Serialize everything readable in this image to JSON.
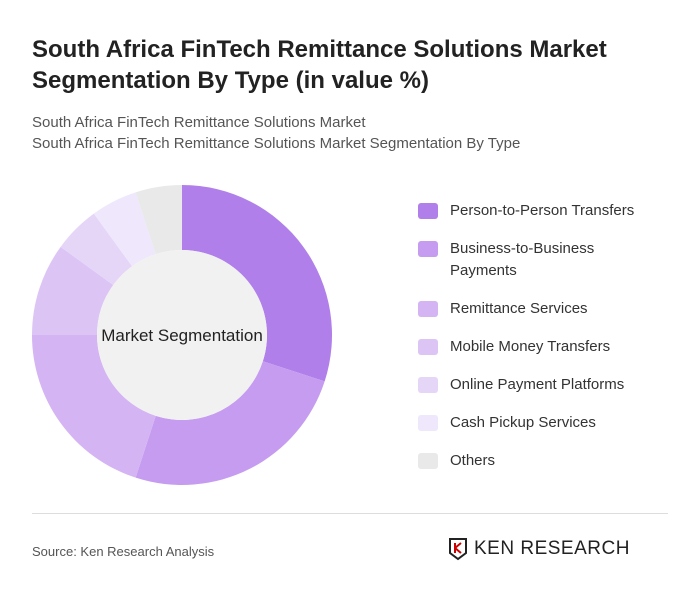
{
  "title": "South Africa FinTech Remittance Solutions Market Segmentation By Type (in value %)",
  "subtitle1": "South Africa FinTech Remittance Solutions Market",
  "subtitle2": "South Africa FinTech Remittance Solutions Market Segmentation By Type",
  "source": "Source: Ken Research Analysis",
  "logo_text": "KEN RESEARCH",
  "chart_data": {
    "type": "pie",
    "donut": true,
    "center_label": "Market Segmentation",
    "legend_position": "right",
    "categories": [
      "Person-to-Person Transfers",
      "Business-to-Business Payments",
      "Remittance Services",
      "Mobile Money Transfers",
      "Online Payment Platforms",
      "Cash Pickup Services",
      "Others"
    ],
    "values": [
      30,
      25,
      20,
      10,
      5,
      5,
      5
    ],
    "colors": [
      "#b07fea",
      "#c59cef",
      "#d4b4f3",
      "#dcc5f5",
      "#e5d6f8",
      "#efe7fb",
      "#e9e9e9"
    ]
  }
}
